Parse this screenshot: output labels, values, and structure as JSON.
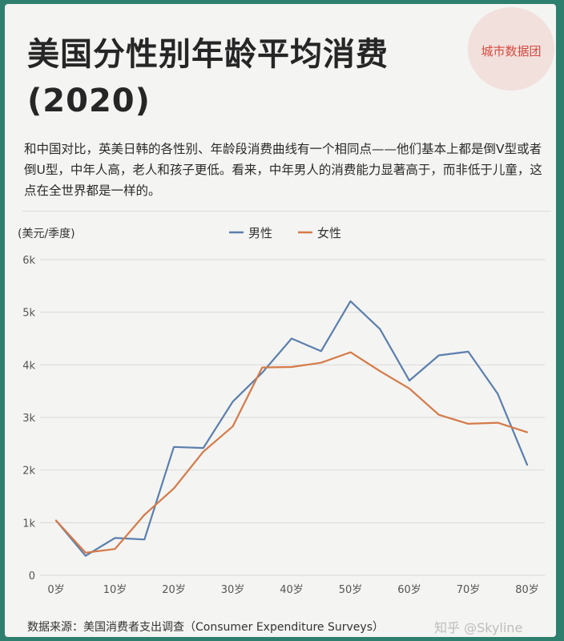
{
  "title": "美国分性别年龄平均消费 (2020)",
  "logo_text": "城市数据团",
  "description": "和中国对比，英美日韩的各性别、年龄段消费曲线有一个相同点——他们基本上都是倒V型或者倒U型，中年人高，老人和孩子更低。看来，中年男人的消费能力显著高于，而非低于儿童，这点在全世界都是一样的。",
  "footer": "数据来源：美国消费者支出调查（Consumer Expenditure Surveys）",
  "watermark": "知乎 @Skyline",
  "colors": {
    "male": "#5b7fae",
    "female": "#d57a48",
    "grid": "#d9d9d9"
  },
  "chart_data": {
    "type": "line",
    "ylabel": "(美元/季度)",
    "ylim": [
      0,
      6000
    ],
    "yticks": [
      {
        "value": 0,
        "label": "0"
      },
      {
        "value": 1000,
        "label": "1k"
      },
      {
        "value": 2000,
        "label": "2k"
      },
      {
        "value": 3000,
        "label": "3k"
      },
      {
        "value": 4000,
        "label": "4k"
      },
      {
        "value": 5000,
        "label": "5k"
      },
      {
        "value": 6000,
        "label": "6k"
      }
    ],
    "xlim": [
      0,
      80
    ],
    "xticks": [
      {
        "value": 0,
        "label": "0岁"
      },
      {
        "value": 10,
        "label": "10岁"
      },
      {
        "value": 20,
        "label": "20岁"
      },
      {
        "value": 30,
        "label": "30岁"
      },
      {
        "value": 40,
        "label": "40岁"
      },
      {
        "value": 50,
        "label": "50岁"
      },
      {
        "value": 60,
        "label": "60岁"
      },
      {
        "value": 70,
        "label": "70岁"
      },
      {
        "value": 80,
        "label": "80岁"
      }
    ],
    "grid": true,
    "legend_position": "top-center",
    "series": [
      {
        "name": "男性",
        "color_key": "male",
        "x": [
          0,
          5,
          10,
          15,
          20,
          25,
          30,
          35,
          40,
          45,
          50,
          55,
          60,
          65,
          70,
          75,
          80
        ],
        "y": [
          1040,
          370,
          710,
          680,
          2440,
          2420,
          3300,
          3850,
          4500,
          4260,
          5210,
          4680,
          3700,
          4180,
          4250,
          3450,
          2100
        ]
      },
      {
        "name": "女性",
        "color_key": "female",
        "x": [
          0,
          5,
          10,
          15,
          20,
          25,
          30,
          35,
          40,
          45,
          50,
          55,
          60,
          65,
          70,
          75,
          80
        ],
        "y": [
          1040,
          430,
          500,
          1150,
          1650,
          2350,
          2830,
          3950,
          3960,
          4040,
          4240,
          3880,
          3550,
          3050,
          2880,
          2900,
          2720
        ]
      }
    ]
  }
}
